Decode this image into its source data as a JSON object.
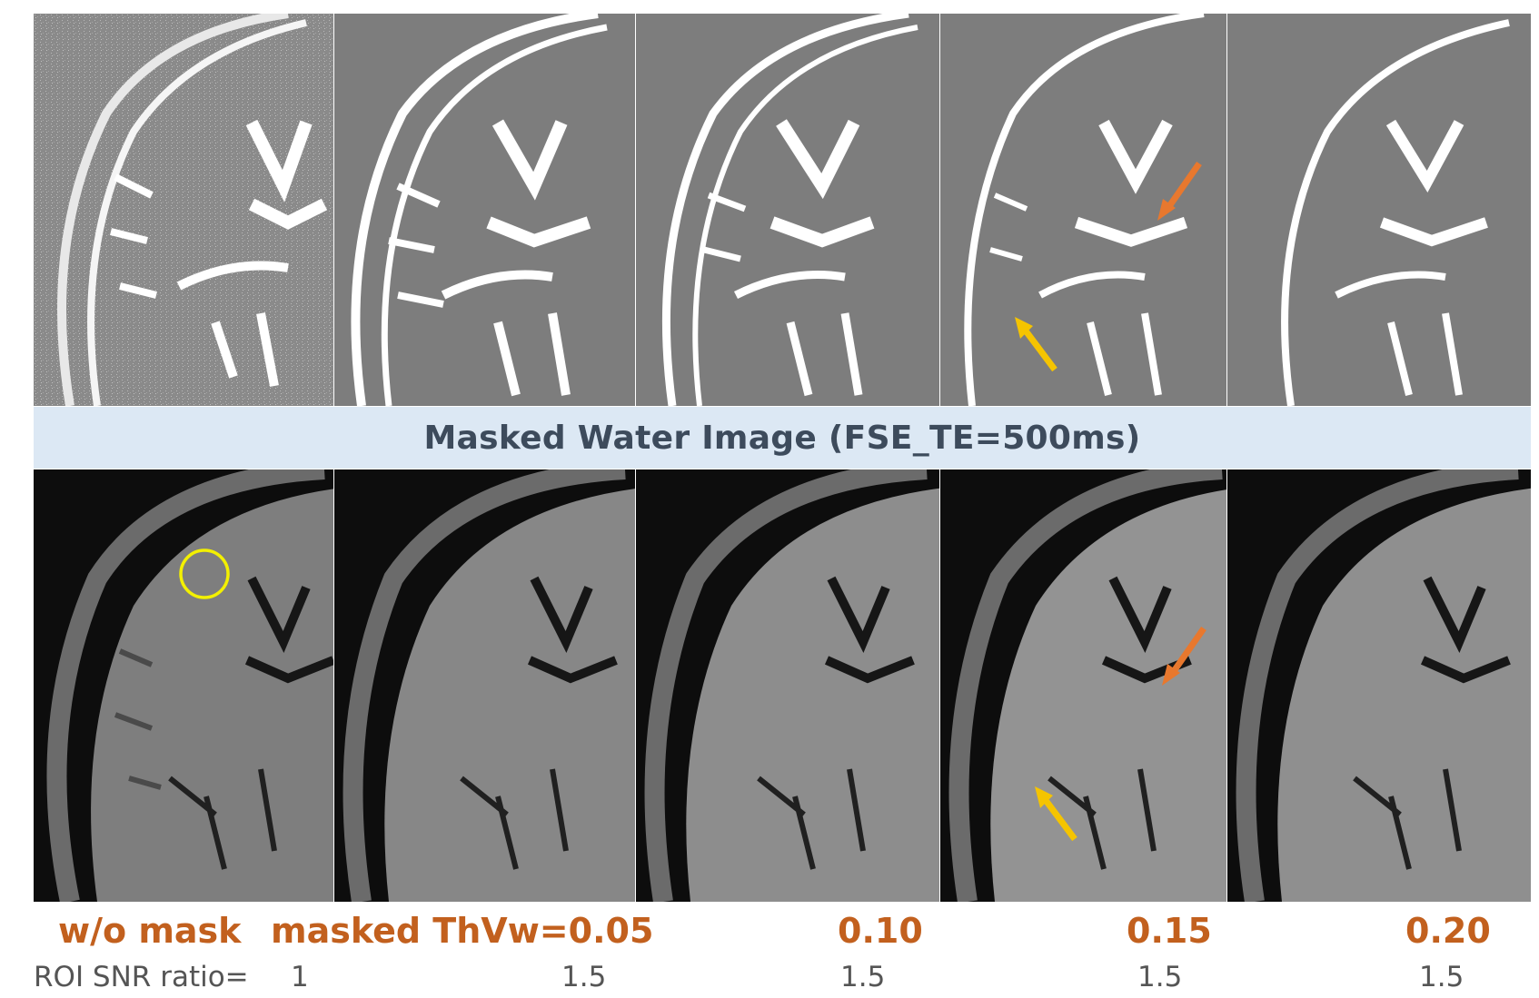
{
  "banner": {
    "title": "Masked Water Image (FSE_TE=500ms)"
  },
  "labels": {
    "wo_mask": "w/o mask",
    "masked_thvw": "masked ThVw=0.05",
    "th_010": "0.10",
    "th_015": "0.15",
    "th_020": "0.20"
  },
  "snr": {
    "prefix": "ROI SNR ratio=",
    "values": [
      "1",
      "1.5",
      "1.5",
      "1.5",
      "1.5"
    ]
  },
  "colors": {
    "label_orange": "#c2601e",
    "banner_bg": "#dce8f4",
    "arrow_orange": "#e8782e",
    "arrow_yellow": "#f5c400",
    "roi_circle": "#f3f000"
  },
  "panels": {
    "top_row": "masked water image panels",
    "bottom_row": "brain MR image panels"
  }
}
